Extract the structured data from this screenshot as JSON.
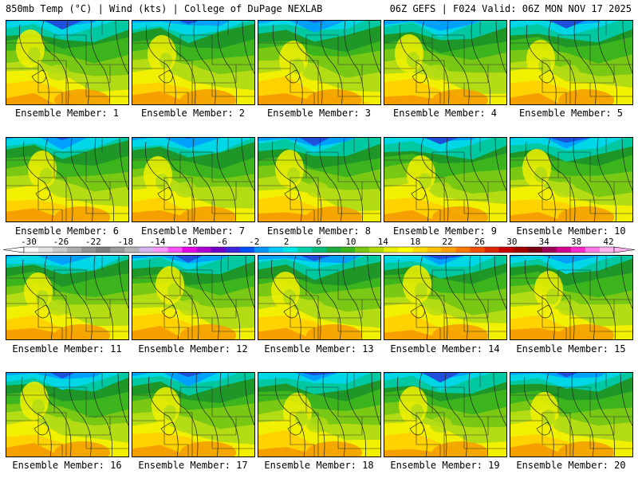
{
  "header": {
    "left": "850mb Temp (°C) | Wind (kts) | College of DuPage NEXLAB",
    "right": "06Z GEFS | F024 Valid: 06Z MON NOV 17 2025"
  },
  "panels": [
    {
      "label": "Ensemble Member: 1"
    },
    {
      "label": "Ensemble Member: 2"
    },
    {
      "label": "Ensemble Member: 3"
    },
    {
      "label": "Ensemble Member: 4"
    },
    {
      "label": "Ensemble Member: 5"
    },
    {
      "label": "Ensemble Member: 6"
    },
    {
      "label": "Ensemble Member: 7"
    },
    {
      "label": "Ensemble Member: 8"
    },
    {
      "label": "Ensemble Member: 9"
    },
    {
      "label": "Ensemble Member: 10"
    },
    {
      "label": "Ensemble Member: 11"
    },
    {
      "label": "Ensemble Member: 12"
    },
    {
      "label": "Ensemble Member: 13"
    },
    {
      "label": "Ensemble Member: 14"
    },
    {
      "label": "Ensemble Member: 15"
    },
    {
      "label": "Ensemble Member: 16"
    },
    {
      "label": "Ensemble Member: 17"
    },
    {
      "label": "Ensemble Member: 18"
    },
    {
      "label": "Ensemble Member: 19"
    },
    {
      "label": "Ensemble Member: 20"
    }
  ],
  "colorbar": {
    "ticks": [
      "-30",
      "-26",
      "-22",
      "-18",
      "-14",
      "-10",
      "-6",
      "-2",
      "2",
      "6",
      "10",
      "14",
      "18",
      "22",
      "26",
      "30",
      "34",
      "38",
      "42"
    ],
    "colors": [
      "#fafafa",
      "#e2e2e2",
      "#c8c8c8",
      "#aeaeae",
      "#949494",
      "#7e7e7e",
      "#9a9a9a",
      "#b4b4b4",
      "#d2b4f0",
      "#ff96ff",
      "#ff50ff",
      "#e600e6",
      "#aa00d2",
      "#6e00c8",
      "#3c28dc",
      "#0050ff",
      "#0096ff",
      "#00c8ff",
      "#00e6e6",
      "#00d2aa",
      "#00be78",
      "#1eaa3c",
      "#3cb41e",
      "#78c814",
      "#b4dc00",
      "#e6f000",
      "#ffff00",
      "#ffdc00",
      "#ffbe00",
      "#ffa000",
      "#ff7800",
      "#f05000",
      "#dc2800",
      "#c80000",
      "#a00000",
      "#780014",
      "#a0005a",
      "#d2008c",
      "#ff28c8",
      "#ff78e6",
      "#ffb4f0"
    ]
  },
  "map_colors": {
    "orange": "#f5a000",
    "gold": "#ffd200",
    "yellow": "#f0f000",
    "lime": "#b4dc14",
    "light_green": "#78c814",
    "green": "#3cb41e",
    "dark_green": "#1e9628",
    "teal": "#00c8a0",
    "cyan": "#00d7e6",
    "sky": "#00a0ff",
    "blue": "#1e50dc"
  }
}
